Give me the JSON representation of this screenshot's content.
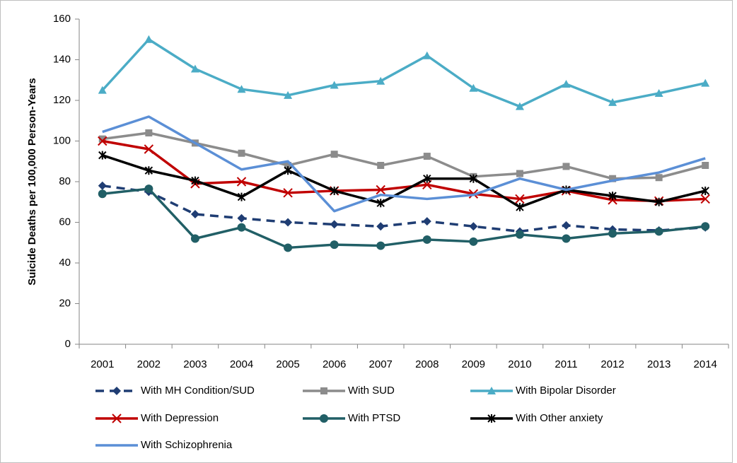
{
  "chart_data": {
    "type": "line",
    "y_label": "Suicide Deaths per 100,000 Person-Years",
    "categories": [
      "2001",
      "2002",
      "2003",
      "2004",
      "2005",
      "2006",
      "2007",
      "2008",
      "2009",
      "2010",
      "2011",
      "2012",
      "2013",
      "2014"
    ],
    "ylim": [
      0,
      160
    ],
    "yticks": [
      0,
      20,
      40,
      60,
      80,
      100,
      120,
      140,
      160
    ],
    "grid": false,
    "series": [
      {
        "name": "With MH Condition/SUD",
        "color": "#1f3d73",
        "marker": "diamond",
        "dashed": true,
        "values": [
          78,
          75,
          64,
          62,
          60,
          59,
          58,
          60.5,
          58,
          55.5,
          58.5,
          56.5,
          56,
          57.5
        ]
      },
      {
        "name": "With SUD",
        "color": "#8c8c8c",
        "marker": "square",
        "values": [
          101,
          104,
          99,
          94,
          88,
          93.5,
          88,
          92.5,
          82.5,
          84,
          87.5,
          81.5,
          82,
          88
        ]
      },
      {
        "name": "With Bipolar Disorder",
        "color": "#4bacc6",
        "marker": "triangle",
        "values": [
          125,
          150,
          135.5,
          125.5,
          122.5,
          127.5,
          129.5,
          142,
          126,
          117,
          128,
          119,
          123.5,
          128.5
        ]
      },
      {
        "name": "With Depression",
        "color": "#c00000",
        "marker": "x",
        "values": [
          100,
          96,
          79,
          80,
          74.5,
          75.5,
          76,
          78.5,
          74,
          71.5,
          75.5,
          71,
          70.5,
          71.5
        ]
      },
      {
        "name": "With PTSD",
        "color": "#215f66",
        "marker": "circle",
        "values": [
          74,
          76.5,
          52,
          57.5,
          47.5,
          49,
          48.5,
          51.5,
          50.5,
          54,
          52,
          54.5,
          55.5,
          58
        ]
      },
      {
        "name": "With Other anxiety",
        "color": "#000000",
        "marker": "star",
        "values": [
          93,
          85.5,
          80.5,
          72.5,
          85.5,
          75.5,
          69.5,
          81.5,
          81.5,
          67.5,
          76,
          73,
          70,
          75.5
        ]
      },
      {
        "name": "With Schizophrenia",
        "color": "#5b8fd6",
        "values": [
          104.5,
          112,
          99,
          86,
          90,
          65.5,
          73.5,
          71.5,
          73.5,
          81.5,
          76,
          80.5,
          84.5,
          91.5
        ]
      }
    ]
  }
}
